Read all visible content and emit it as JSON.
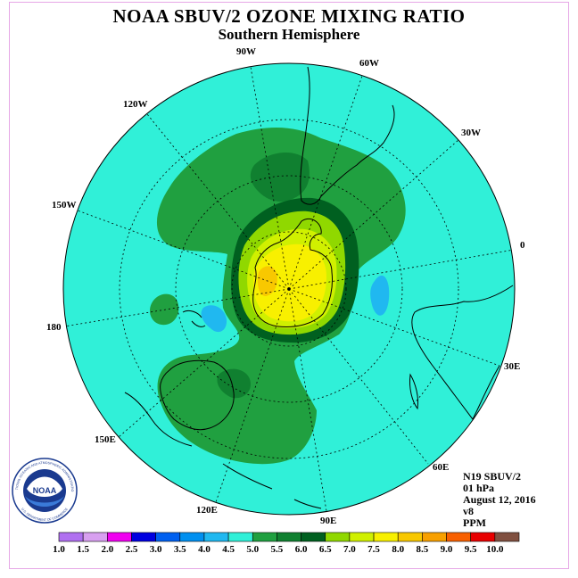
{
  "title": "NOAA SBUV/2 OZONE MIXING RATIO",
  "subtitle": "Southern Hemisphere",
  "map_labels": {
    "lon_90w": "90W",
    "lon_60w": "60W",
    "lon_120w": "120W",
    "lon_30w": "30W",
    "lon_150w": "150W",
    "lon_0": "0",
    "lon_180": "180",
    "lon_30e": "30E",
    "lon_150e": "150E",
    "lon_60e": "60E",
    "lon_120e": "120E",
    "lon_90e": "90E"
  },
  "info": {
    "satellite": "N19 SBUV/2",
    "level": "01 hPa",
    "date": "August 12, 2016",
    "version": "v8",
    "units": "PPM"
  },
  "logo": {
    "text": "NOAA",
    "ring_text": "NATIONAL OCEANIC AND ATMOSPHERIC ADMINISTRATION",
    "ring_text_bottom": "U.S. DEPARTMENT OF COMMERCE"
  },
  "colorbar": {
    "labels": [
      "1.0",
      "1.5",
      "2.0",
      "2.5",
      "3.0",
      "3.5",
      "4.0",
      "4.5",
      "5.0",
      "5.5",
      "6.0",
      "6.5",
      "7.0",
      "7.5",
      "8.0",
      "8.5",
      "9.0",
      "9.5",
      "10.0"
    ],
    "colors": [
      "#b070f0",
      "#d8a0f0",
      "#f000f0",
      "#0000e0",
      "#0060f0",
      "#0090f0",
      "#20b8f0",
      "#30f0d8",
      "#20a040",
      "#108030",
      "#006020",
      "#90d800",
      "#d0f000",
      "#f8f000",
      "#f8c800",
      "#f8a000",
      "#f86000",
      "#e80000",
      "#805040"
    ]
  },
  "palette": {
    "background_ocean": "#30f0d8",
    "level_5_0": "#20a040",
    "level_5_5": "#108030",
    "level_6_0": "#006020",
    "level_6_5": "#90d800",
    "level_7_0": "#d0f000",
    "level_7_5": "#f8f000",
    "level_8_0": "#f8c800",
    "low_4_0": "#20b8f0",
    "frame": "#e6a8e6"
  }
}
